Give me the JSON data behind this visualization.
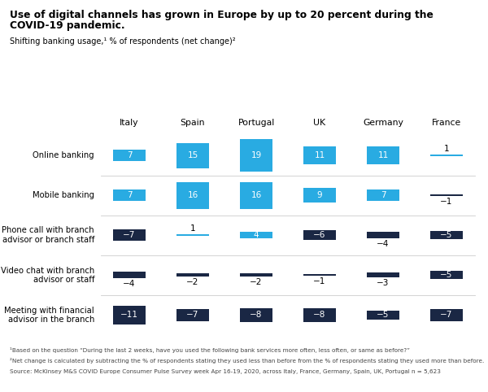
{
  "title_line1": "Use of digital channels has grown in Europe by up to 20 percent during the",
  "title_line2": "COVID-19 pandemic.",
  "subtitle": "Shifting banking usage,¹ % of respondents (net change)²",
  "footnote1": "¹Based on the question “During the last 2 weeks, have you used the following bank services more often, less often, or same as before?”",
  "footnote2": "²Net change is calculated by subtracting the % of respondents stating they used less than before from the % of respondents stating they used more than before.",
  "footnote3": "Source: McKinsey M&S COVID Europe Consumer Pulse Survey week Apr 16-19, 2020, across Italy, France, Germany, Spain, UK, Portugal n = 5,623",
  "countries": [
    "Italy",
    "Spain",
    "Portugal",
    "UK",
    "Germany",
    "France"
  ],
  "categories": [
    "Online banking",
    "Mobile banking",
    "Phone call with branch\nadvisor or branch staff",
    "Video chat with branch\nadvisor or staff",
    "Meeting with financial\nadvisor in the branch"
  ],
  "values": [
    [
      7,
      15,
      19,
      11,
      11,
      1
    ],
    [
      7,
      16,
      16,
      9,
      7,
      -1
    ],
    [
      -7,
      1,
      4,
      -6,
      -4,
      -5
    ],
    [
      -4,
      -2,
      -2,
      -1,
      -3,
      -5
    ],
    [
      -11,
      -7,
      -8,
      -8,
      -5,
      -7
    ]
  ],
  "pos_color": "#29ABE2",
  "neg_color": "#1A2744",
  "bg_color": "#FFFFFF"
}
